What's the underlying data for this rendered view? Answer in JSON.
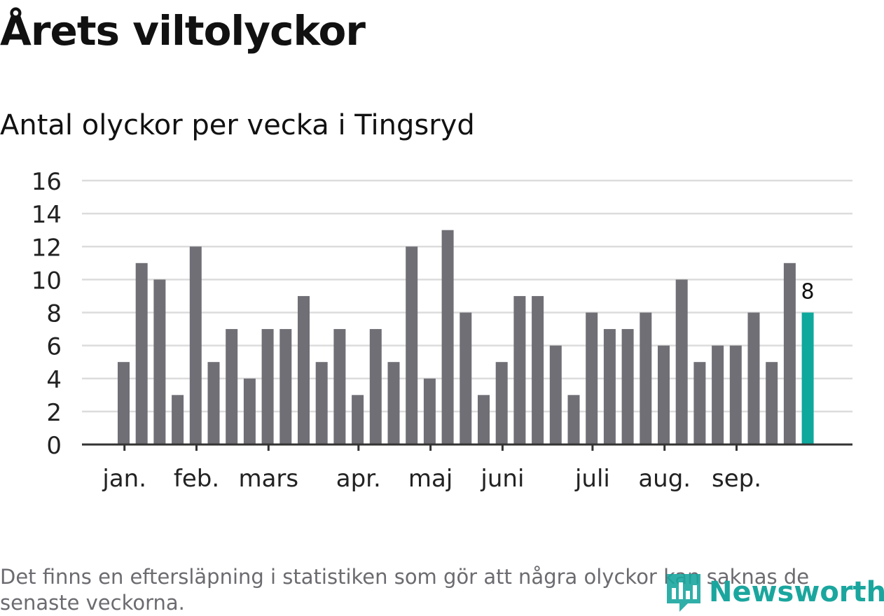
{
  "title": "Årets viltolyckor",
  "subtitle": "Antal olyckor per vecka i Tingsryd",
  "footnote": "Det finns en eftersläpning i statistiken som gör att några olyckor kan saknas de senaste veckorna.",
  "logo": {
    "name": "Newsworthy",
    "icon": "bar-chart-logo-icon"
  },
  "colors": {
    "bar": "#706f76",
    "highlight": "#0ea89d",
    "grid": "#dcdcdc",
    "axis": "#333333"
  },
  "chart_data": {
    "type": "bar",
    "ylim": [
      0,
      16
    ],
    "yticks": [
      0,
      2,
      4,
      6,
      8,
      10,
      12,
      14,
      16
    ],
    "grid": true,
    "values": [
      5,
      11,
      10,
      3,
      12,
      5,
      7,
      4,
      7,
      7,
      9,
      5,
      7,
      3,
      7,
      5,
      12,
      4,
      13,
      8,
      3,
      5,
      9,
      9,
      6,
      3,
      8,
      7,
      7,
      8,
      6,
      10,
      5,
      6,
      6,
      8,
      5,
      11,
      8
    ],
    "highlight_index": 38,
    "highlight_label": "8",
    "month_labels": [
      {
        "label": "jan.",
        "week_index": 0.3
      },
      {
        "label": "feb.",
        "week_index": 4.3
      },
      {
        "label": "mars",
        "week_index": 8.3
      },
      {
        "label": "apr.",
        "week_index": 13.3
      },
      {
        "label": "maj",
        "week_index": 17.3
      },
      {
        "label": "juni",
        "week_index": 21.3
      },
      {
        "label": "juli",
        "week_index": 26.3
      },
      {
        "label": "aug.",
        "week_index": 30.3
      },
      {
        "label": "sep.",
        "week_index": 34.3
      }
    ]
  }
}
